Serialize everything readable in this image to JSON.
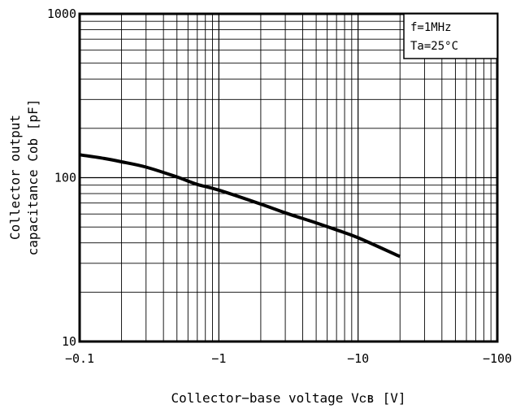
{
  "chart_data": {
    "type": "line",
    "title": "",
    "xlabel": "Collector−base voltage Vᴄʙ [V]",
    "ylabel_line1": "Collector output",
    "ylabel_line2": "capacitance Cob [pF]",
    "x_scale": "log",
    "y_scale": "log",
    "xlim": [
      -0.1,
      -100
    ],
    "ylim": [
      10,
      1000
    ],
    "x_ticks": [
      {
        "value": -0.1,
        "label": "−0.1"
      },
      {
        "value": -1,
        "label": "−1"
      },
      {
        "value": -10,
        "label": "−10"
      },
      {
        "value": -100,
        "label": "−100"
      }
    ],
    "y_ticks": [
      {
        "value": 10,
        "label": "10"
      },
      {
        "value": 100,
        "label": "100"
      },
      {
        "value": 1000,
        "label": "1000"
      }
    ],
    "grid": true,
    "annotations": [
      "f=1MHz",
      "Ta=25°C"
    ],
    "series": [
      {
        "x": [
          -0.1,
          -0.15,
          -0.2,
          -0.3,
          -0.5,
          -0.7,
          -1,
          -2,
          -3,
          -5,
          -7,
          -10,
          -20
        ],
        "y": [
          138,
          131,
          125,
          116,
          101,
          91,
          84,
          69,
          61,
          53,
          48,
          43,
          33
        ]
      }
    ]
  }
}
